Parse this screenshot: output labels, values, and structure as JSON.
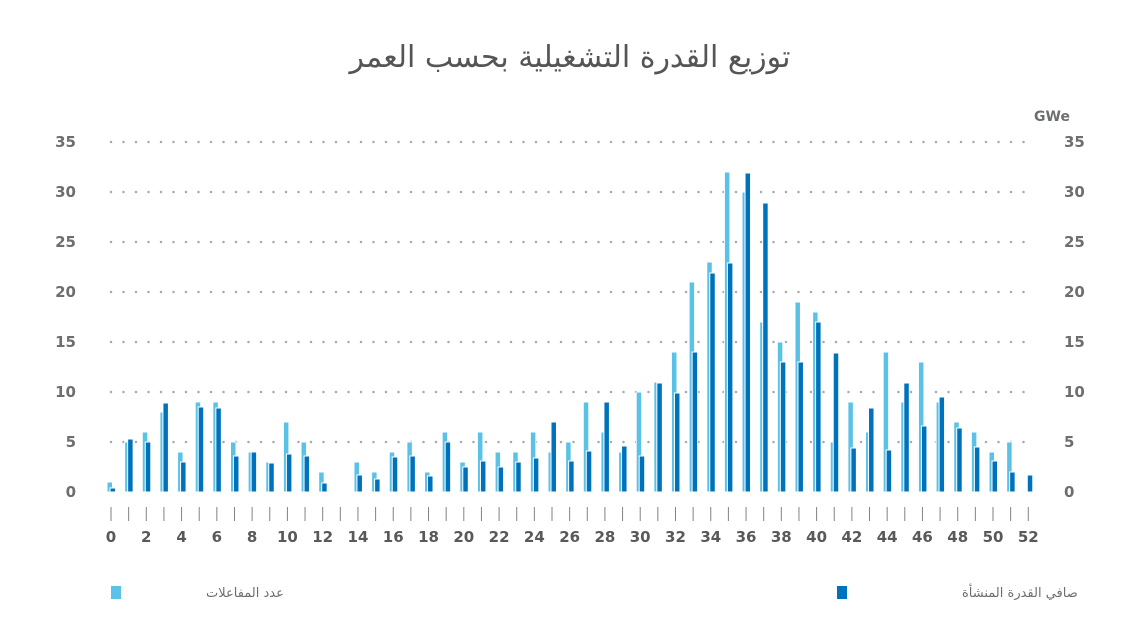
{
  "chart_data": {
    "type": "bar",
    "title": "توزيع القدرة التشغيلية بحسب العمر",
    "right_axis_unit": "GWe",
    "ylim": [
      0,
      35
    ],
    "y_ticks": [
      0,
      5,
      10,
      15,
      20,
      25,
      30,
      35
    ],
    "x_tick_labels": [
      "0",
      "2",
      "4",
      "6",
      "8",
      "10",
      "12",
      "14",
      "16",
      "18",
      "20",
      "22",
      "24",
      "26",
      "28",
      "30",
      "32",
      "34",
      "36",
      "38",
      "40",
      "42",
      "44",
      "46",
      "48",
      "50",
      "52"
    ],
    "categories": [
      0,
      1,
      2,
      3,
      4,
      5,
      6,
      7,
      8,
      9,
      10,
      11,
      12,
      13,
      14,
      15,
      16,
      17,
      18,
      19,
      20,
      21,
      22,
      23,
      24,
      25,
      26,
      27,
      28,
      29,
      30,
      31,
      32,
      33,
      34,
      35,
      36,
      37,
      38,
      39,
      40,
      41,
      42,
      43,
      44,
      45,
      46,
      47,
      48,
      49,
      50,
      51,
      52
    ],
    "grid": "dotted horizontal",
    "legend_position": "bottom",
    "series": [
      {
        "name": "عدد المفاعلات",
        "color": "#5bc2e7",
        "values": [
          1,
          5,
          6,
          8,
          4,
          9,
          9,
          5,
          4,
          3,
          7,
          5,
          2,
          0,
          3,
          2,
          4,
          5,
          2,
          6,
          3,
          6,
          4,
          4,
          6,
          4,
          5,
          9,
          6,
          4,
          10,
          11,
          14,
          21,
          23,
          32,
          30,
          17,
          15,
          19,
          18,
          5,
          9,
          6,
          14,
          9,
          13,
          9,
          7,
          6,
          4,
          5,
          0
        ]
      },
      {
        "name": "صافي القدرة المنشأة",
        "color": "#0072bc",
        "values": [
          0.4,
          5.3,
          5.0,
          8.9,
          3.0,
          8.5,
          8.4,
          3.6,
          4.0,
          2.9,
          3.8,
          3.6,
          0.9,
          0,
          1.7,
          1.3,
          3.5,
          3.6,
          1.6,
          5.0,
          2.5,
          3.1,
          2.5,
          3.0,
          3.4,
          7.0,
          3.1,
          4.1,
          9.0,
          4.6,
          3.6,
          10.9,
          9.9,
          14.0,
          21.9,
          22.9,
          31.9,
          28.9,
          13.0,
          13.0,
          17.0,
          13.9,
          4.4,
          8.4,
          4.2,
          10.9,
          6.6,
          9.5,
          6.4,
          4.5,
          3.1,
          2.0,
          1.7
        ]
      }
    ]
  }
}
